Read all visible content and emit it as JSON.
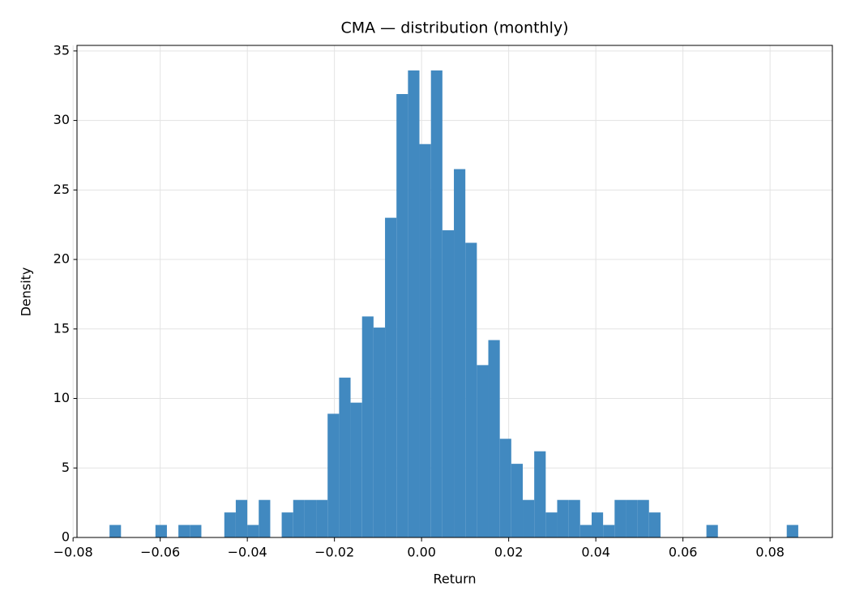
{
  "chart_data": {
    "type": "histogram",
    "title": "CMA — distribution (monthly)",
    "x_label": "Return",
    "y_label": "Density",
    "bins": [
      -0.07163,
      -0.069,
      -0.06636,
      -0.06373,
      -0.06109,
      -0.05846,
      -0.05582,
      -0.05319,
      -0.05055,
      -0.04792,
      -0.04528,
      -0.04265,
      -0.04001,
      -0.03738,
      -0.03474,
      -0.03211,
      -0.02947,
      -0.02684,
      -0.0242,
      -0.02157,
      -0.01893,
      -0.0163,
      -0.01366,
      -0.01103,
      -0.00839,
      -0.00576,
      -0.00312,
      -0.00049,
      0.00215,
      0.00478,
      0.00742,
      0.01005,
      0.01269,
      0.01532,
      0.01796,
      0.02059,
      0.02323,
      0.02586,
      0.0285,
      0.03113,
      0.03377,
      0.0364,
      0.03904,
      0.04167,
      0.04431,
      0.04694,
      0.04958,
      0.05221,
      0.05485,
      0.05748,
      0.06012,
      0.06275,
      0.06539,
      0.06802,
      0.07066,
      0.07329,
      0.07593,
      0.07856,
      0.0812,
      0.08383,
      0.08647
    ],
    "values": [
      0.9,
      0,
      0,
      0,
      0.9,
      0,
      0.9,
      0.9,
      0,
      0,
      1.8,
      2.7,
      0.9,
      2.7,
      0,
      1.8,
      2.7,
      2.7,
      2.7,
      8.9,
      11.5,
      9.7,
      15.9,
      15.1,
      23.0,
      31.9,
      33.6,
      28.3,
      33.6,
      22.1,
      26.5,
      21.2,
      12.4,
      14.2,
      7.1,
      5.3,
      2.7,
      6.2,
      1.8,
      2.7,
      2.7,
      0.9,
      1.8,
      0.9,
      2.7,
      2.7,
      2.7,
      1.8,
      0,
      0,
      0,
      0,
      0.9,
      0,
      0,
      0,
      0,
      0,
      0,
      0.9
    ],
    "color": "#4189c0",
    "xlim": [
      -0.0791,
      0.0943
    ],
    "ylim": [
      0,
      35.4
    ],
    "xticks": [
      {
        "value": -0.08,
        "label": "−0.08"
      },
      {
        "value": -0.06,
        "label": "−0.06"
      },
      {
        "value": -0.04,
        "label": "−0.04"
      },
      {
        "value": -0.02,
        "label": "−0.02"
      },
      {
        "value": 0,
        "label": "0.00"
      },
      {
        "value": 0.02,
        "label": "0.02"
      },
      {
        "value": 0.04,
        "label": "0.04"
      },
      {
        "value": 0.06,
        "label": "0.06"
      },
      {
        "value": 0.08,
        "label": "0.08"
      }
    ],
    "yticks": [
      0,
      5,
      10,
      15,
      20,
      25,
      30,
      35
    ],
    "grid": true
  }
}
